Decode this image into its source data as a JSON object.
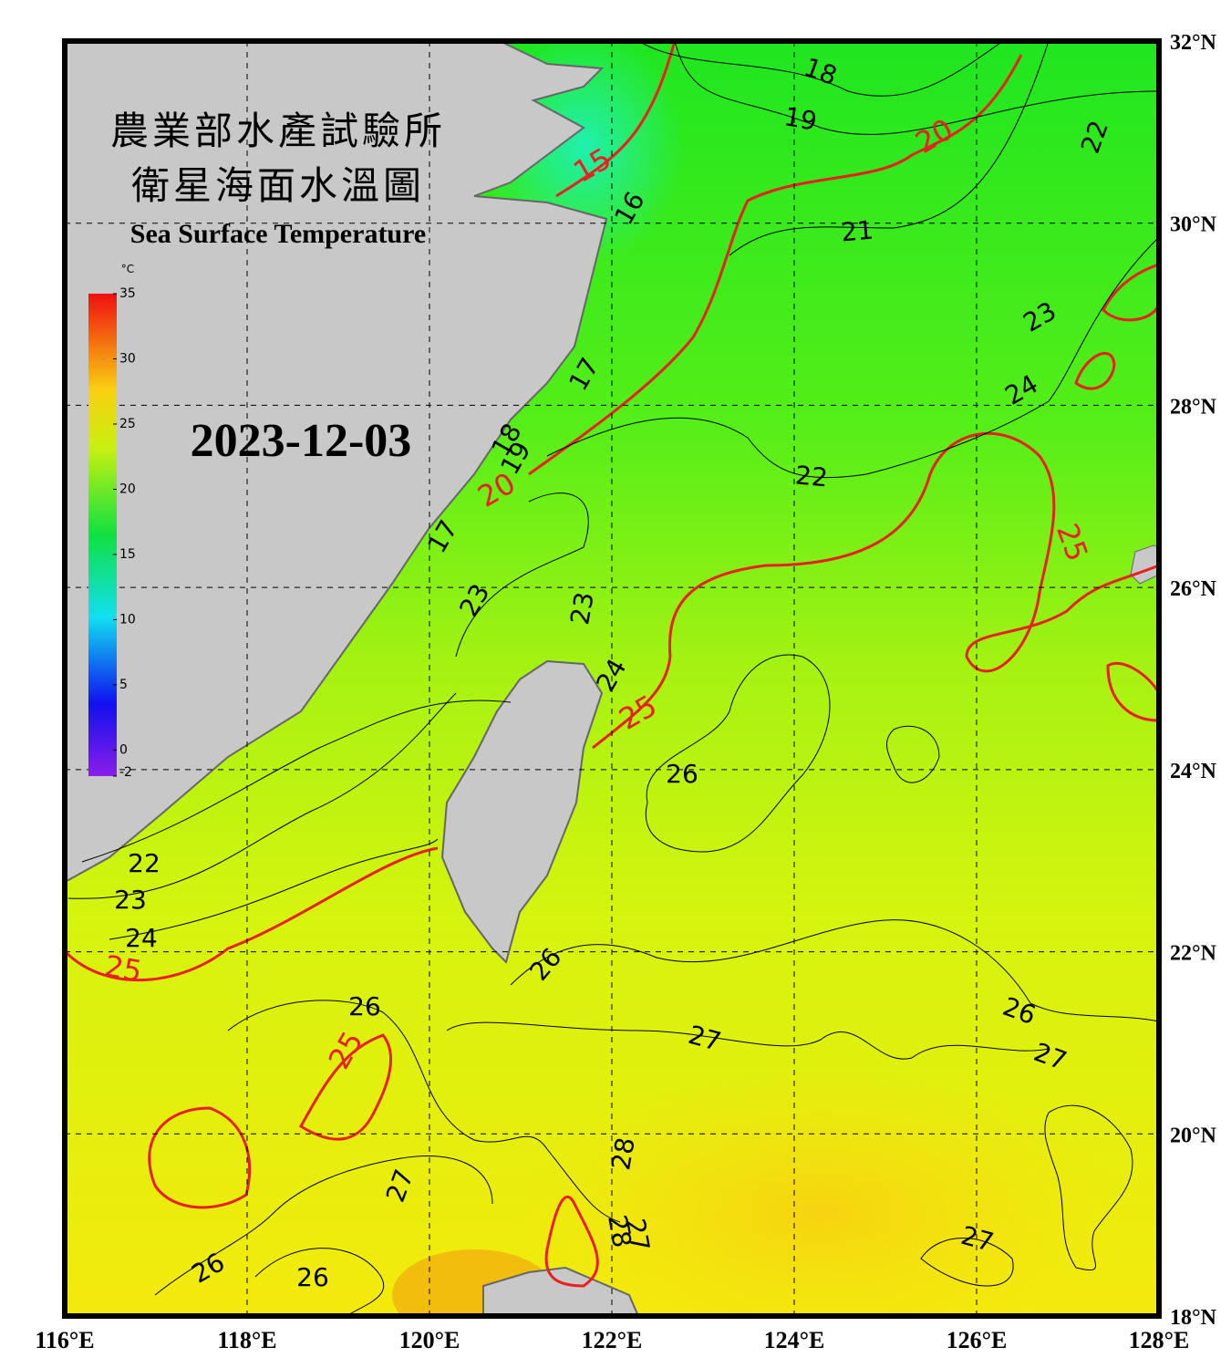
{
  "header": {
    "title_zh_1": "農業部水產試驗所",
    "title_zh_2": "衛星海面水溫圖",
    "title_en": "Sea Surface Temperature",
    "date": "2023-12-03"
  },
  "colorbar": {
    "unit": "°C",
    "range": [
      -2,
      35
    ],
    "ticks": [
      35,
      30,
      25,
      20,
      15,
      10,
      5,
      0,
      -2
    ]
  },
  "map": {
    "lon_ticks": [
      {
        "value": 116,
        "label": "116°E"
      },
      {
        "value": 118,
        "label": "118°E"
      },
      {
        "value": 120,
        "label": "120°E"
      },
      {
        "value": 122,
        "label": "122°E"
      },
      {
        "value": 124,
        "label": "124°E"
      },
      {
        "value": 126,
        "label": "126°E"
      },
      {
        "value": 128,
        "label": "128°E"
      }
    ],
    "lat_ticks": [
      {
        "value": 32,
        "label": "32°N"
      },
      {
        "value": 30,
        "label": "30°N"
      },
      {
        "value": 28,
        "label": "28°N"
      },
      {
        "value": 26,
        "label": "26°N"
      },
      {
        "value": 24,
        "label": "24°N"
      },
      {
        "value": 22,
        "label": "22°N"
      },
      {
        "value": 20,
        "label": "20°N"
      },
      {
        "value": 18,
        "label": "18°N"
      }
    ],
    "contour_labels": [
      18,
      19,
      20,
      22,
      15,
      16,
      21,
      23,
      24,
      17,
      18,
      19,
      20,
      22,
      25,
      17,
      23,
      23,
      24,
      25,
      26,
      22,
      23,
      24,
      25,
      26,
      26,
      26,
      27,
      27,
      25,
      28,
      27,
      28,
      27,
      27,
      26,
      26
    ]
  }
}
